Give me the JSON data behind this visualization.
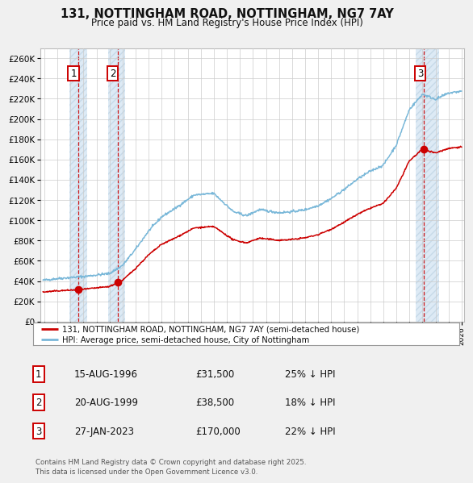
{
  "title": "131, NOTTINGHAM ROAD, NOTTINGHAM, NG7 7AY",
  "subtitle": "Price paid vs. HM Land Registry's House Price Index (HPI)",
  "sale_dates_num": [
    1996.622,
    1999.622,
    2023.074
  ],
  "sale_prices": [
    31500,
    38500,
    170000
  ],
  "sale_labels": [
    "1",
    "2",
    "3"
  ],
  "xlim": [
    1993.7,
    2026.2
  ],
  "ylim_max": 270000,
  "ytick_step": 20000,
  "legend_line1": "131, NOTTINGHAM ROAD, NOTTINGHAM, NG7 7AY (semi-detached house)",
  "legend_line2": "HPI: Average price, semi-detached house, City of Nottingham",
  "table_data": [
    [
      "1",
      "15-AUG-1996",
      "£31,500",
      "25% ↓ HPI"
    ],
    [
      "2",
      "20-AUG-1999",
      "£38,500",
      "18% ↓ HPI"
    ],
    [
      "3",
      "27-JAN-2023",
      "£170,000",
      "22% ↓ HPI"
    ]
  ],
  "footer": "Contains HM Land Registry data © Crown copyright and database right 2025.\nThis data is licensed under the Open Government Licence v3.0.",
  "bg_color": "#f0f0f0",
  "plot_bg_color": "#ffffff",
  "hpi_color": "#7ab8d9",
  "price_color": "#cc0000",
  "grid_color": "#cccccc",
  "sale_region_color": "#ddeaf5"
}
